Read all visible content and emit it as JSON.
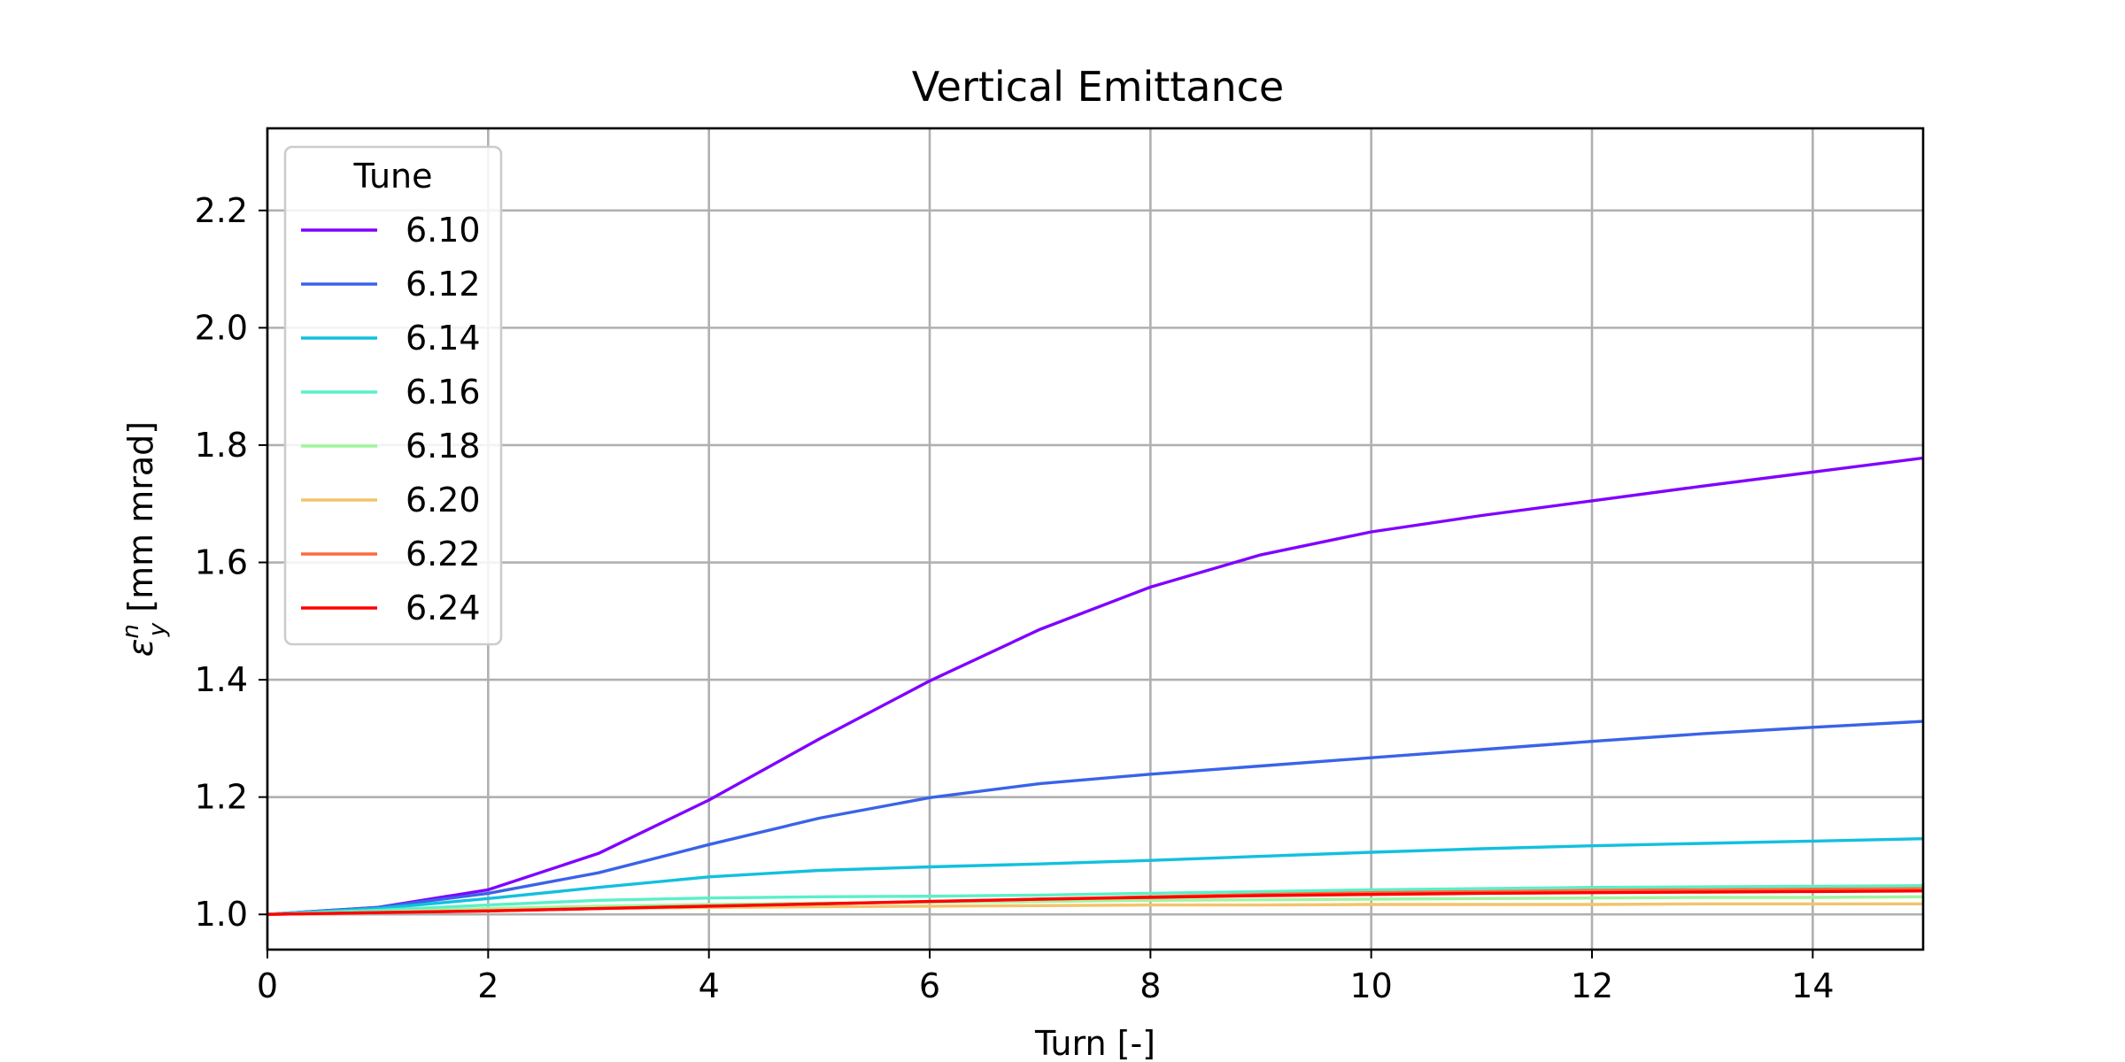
{
  "chart_data": {
    "type": "line",
    "title": "Vertical Emittance",
    "xlabel": "Turn [-]",
    "ylabel_symbol": "ε",
    "ylabel_sup": "n",
    "ylabel_sub": "y",
    "ylabel_unit": "[mm mrad]",
    "xlim": [
      0,
      15
    ],
    "ylim": [
      0.94,
      2.34
    ],
    "xticks": [
      0,
      2,
      4,
      6,
      8,
      10,
      12,
      14
    ],
    "yticks": [
      1.0,
      1.2,
      1.4,
      1.6,
      1.8,
      2.0,
      2.2
    ],
    "grid": true,
    "legend_title": "Tune",
    "legend_position": "upper-left",
    "x": [
      0,
      1,
      2,
      3,
      4,
      5,
      6,
      7,
      8,
      9,
      10,
      11,
      12,
      13,
      14,
      15
    ],
    "series": [
      {
        "name": "6.10",
        "color": "#8000ff",
        "values": [
          1.0,
          1.012,
          1.042,
          1.104,
          1.195,
          1.299,
          1.398,
          1.486,
          1.558,
          1.613,
          1.652,
          1.68,
          1.705,
          1.73,
          1.754,
          1.778
        ]
      },
      {
        "name": "6.12",
        "color": "#3a63e8",
        "values": [
          1.0,
          1.012,
          1.036,
          1.071,
          1.119,
          1.164,
          1.199,
          1.223,
          1.239,
          1.253,
          1.267,
          1.281,
          1.295,
          1.308,
          1.319,
          1.329
        ]
      },
      {
        "name": "6.14",
        "color": "#12c0de",
        "values": [
          1.0,
          1.01,
          1.027,
          1.046,
          1.064,
          1.075,
          1.081,
          1.086,
          1.092,
          1.099,
          1.106,
          1.112,
          1.117,
          1.121,
          1.125,
          1.129
        ]
      },
      {
        "name": "6.16",
        "color": "#5af0c8",
        "values": [
          1.0,
          1.007,
          1.016,
          1.024,
          1.028,
          1.03,
          1.031,
          1.033,
          1.036,
          1.039,
          1.042,
          1.044,
          1.046,
          1.047,
          1.048,
          1.049
        ]
      },
      {
        "name": "6.18",
        "color": "#a0f59c",
        "values": [
          1.0,
          1.004,
          1.01,
          1.014,
          1.017,
          1.019,
          1.021,
          1.022,
          1.024,
          1.025,
          1.026,
          1.027,
          1.028,
          1.029,
          1.029,
          1.03
        ]
      },
      {
        "name": "6.20",
        "color": "#f2c46c",
        "values": [
          1.0,
          1.003,
          1.007,
          1.01,
          1.012,
          1.013,
          1.014,
          1.015,
          1.016,
          1.016,
          1.017,
          1.017,
          1.017,
          1.018,
          1.018,
          1.018
        ]
      },
      {
        "name": "6.22",
        "color": "#ff6a3c",
        "values": [
          1.0,
          1.003,
          1.006,
          1.01,
          1.014,
          1.018,
          1.022,
          1.026,
          1.03,
          1.034,
          1.037,
          1.039,
          1.041,
          1.042,
          1.043,
          1.044
        ]
      },
      {
        "name": "6.24",
        "color": "#ff0000",
        "values": [
          1.0,
          1.003,
          1.006,
          1.01,
          1.014,
          1.018,
          1.022,
          1.026,
          1.029,
          1.032,
          1.034,
          1.036,
          1.037,
          1.038,
          1.039,
          1.04
        ]
      }
    ]
  }
}
